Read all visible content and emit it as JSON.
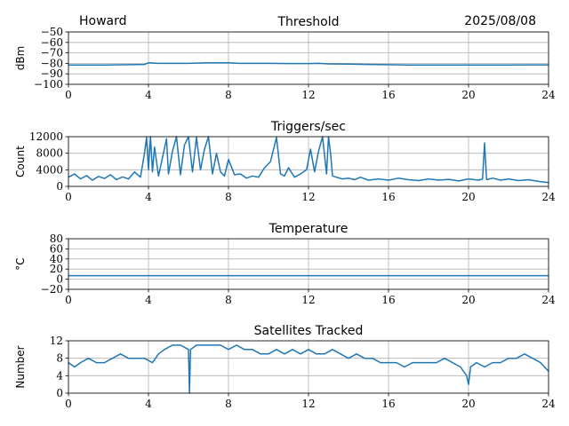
{
  "header": {
    "station": "Howard",
    "date": "2025/08/08"
  },
  "chart_data": [
    {
      "type": "line",
      "title": "Threshold",
      "ylabel": "dBm",
      "xlabel": "",
      "xlim": [
        0,
        24
      ],
      "ylim": [
        -100,
        -50
      ],
      "xticks": [
        "0",
        "4",
        "8",
        "12",
        "16",
        "20",
        "24"
      ],
      "yticks": [
        "−50",
        "−60",
        "−70",
        "−80",
        "−90",
        "−100"
      ],
      "ytick_values": [
        -50,
        -60,
        -70,
        -80,
        -90,
        -100
      ],
      "grid": true,
      "color": "#1f77b4",
      "series": [
        {
          "x": [
            0,
            1,
            2,
            3,
            3.8,
            4.0,
            4.5,
            5,
            6,
            7,
            8,
            8.5,
            9,
            10,
            11,
            12,
            12.5,
            13,
            14,
            15,
            16,
            17,
            18,
            19,
            20,
            21,
            22,
            23,
            24
          ],
          "values": [
            -81.5,
            -81.5,
            -81.5,
            -81.3,
            -81,
            -79.5,
            -80,
            -80,
            -80,
            -79.5,
            -79.5,
            -80,
            -80,
            -80,
            -80.2,
            -80.2,
            -80,
            -80.5,
            -80.8,
            -81,
            -81.3,
            -81.5,
            -81.6,
            -81.6,
            -81.5,
            -81.5,
            -81.5,
            -81.4,
            -81.4
          ]
        }
      ]
    },
    {
      "type": "line",
      "title": "Triggers/sec",
      "ylabel": "Count",
      "xlabel": "",
      "xlim": [
        0,
        24
      ],
      "ylim": [
        0,
        12000
      ],
      "xticks": [
        "0",
        "4",
        "8",
        "12",
        "16",
        "20",
        "24"
      ],
      "yticks": [
        "0",
        "4000",
        "8000",
        "12000"
      ],
      "ytick_values": [
        0,
        4000,
        8000,
        12000
      ],
      "grid": true,
      "color": "#1f77b4",
      "series": [
        {
          "x": [
            0,
            0.3,
            0.6,
            0.9,
            1.2,
            1.5,
            1.8,
            2.1,
            2.4,
            2.7,
            3.0,
            3.3,
            3.6,
            3.8,
            3.9,
            4.0,
            4.1,
            4.2,
            4.3,
            4.5,
            4.7,
            4.9,
            5.0,
            5.2,
            5.4,
            5.6,
            5.8,
            6.0,
            6.2,
            6.4,
            6.6,
            6.8,
            7.0,
            7.2,
            7.4,
            7.6,
            7.8,
            8.0,
            8.3,
            8.6,
            8.9,
            9.2,
            9.5,
            9.8,
            10.1,
            10.4,
            10.6,
            10.8,
            11.0,
            11.3,
            11.6,
            11.9,
            12.1,
            12.3,
            12.5,
            12.7,
            12.9,
            13.0,
            13.1,
            13.2,
            13.4,
            13.7,
            14.0,
            14.3,
            14.6,
            15.0,
            15.5,
            16.0,
            16.5,
            17.0,
            17.5,
            18.0,
            18.5,
            19.0,
            19.5,
            20.0,
            20.5,
            20.7,
            20.8,
            20.9,
            21.2,
            21.6,
            22.0,
            22.5,
            23.0,
            23.5,
            24.0
          ],
          "values": [
            2200,
            3000,
            1800,
            2600,
            1500,
            2400,
            1900,
            2800,
            1600,
            2300,
            1800,
            3500,
            2200,
            8000,
            11800,
            4000,
            12000,
            3500,
            9500,
            2500,
            7000,
            11500,
            3000,
            8500,
            12000,
            2800,
            10000,
            12000,
            3500,
            11800,
            4000,
            9000,
            12000,
            3000,
            8000,
            3500,
            2500,
            6500,
            2800,
            3000,
            2000,
            2500,
            2200,
            4500,
            6000,
            11800,
            3000,
            2500,
            4500,
            2200,
            3000,
            4000,
            9000,
            3500,
            8500,
            12000,
            3000,
            12000,
            8000,
            2500,
            2200,
            1800,
            2000,
            1600,
            2200,
            1500,
            1800,
            1500,
            2000,
            1600,
            1400,
            1800,
            1500,
            1700,
            1300,
            1800,
            1500,
            1800,
            10500,
            1600,
            2000,
            1500,
            1800,
            1400,
            1600,
            1200,
            900
          ]
        }
      ]
    },
    {
      "type": "line",
      "title": "Temperature",
      "ylabel": "°C",
      "xlabel": "",
      "xlim": [
        0,
        24
      ],
      "ylim": [
        -20,
        80
      ],
      "xticks": [
        "0",
        "4",
        "8",
        "12",
        "16",
        "20",
        "24"
      ],
      "yticks": [
        "−20",
        "0",
        "20",
        "40",
        "60",
        "80"
      ],
      "ytick_values": [
        -20,
        0,
        20,
        40,
        60,
        80
      ],
      "grid": true,
      "color": "#1f77b4",
      "series": [
        {
          "x": [
            0,
            24
          ],
          "values": [
            7,
            7
          ]
        }
      ]
    },
    {
      "type": "line",
      "title": "Satellites Tracked",
      "ylabel": "Number",
      "xlabel": "",
      "xlim": [
        0,
        24
      ],
      "ylim": [
        0,
        12
      ],
      "xticks": [
        "0",
        "4",
        "8",
        "12",
        "16",
        "20",
        "24"
      ],
      "yticks": [
        "0",
        "4",
        "8",
        "12"
      ],
      "ytick_values": [
        0,
        4,
        8,
        12
      ],
      "grid": true,
      "color": "#1f77b4",
      "series": [
        {
          "x": [
            0,
            0.3,
            0.6,
            1.0,
            1.4,
            1.8,
            2.2,
            2.6,
            3.0,
            3.4,
            3.8,
            4.2,
            4.5,
            4.8,
            5.2,
            5.6,
            6.0,
            6.05,
            6.1,
            6.4,
            6.8,
            7.2,
            7.6,
            8.0,
            8.4,
            8.8,
            9.2,
            9.6,
            10.0,
            10.4,
            10.8,
            11.2,
            11.6,
            12.0,
            12.4,
            12.8,
            13.2,
            13.6,
            14.0,
            14.4,
            14.8,
            15.2,
            15.6,
            16.0,
            16.4,
            16.8,
            17.2,
            17.6,
            18.0,
            18.4,
            18.8,
            19.2,
            19.6,
            19.9,
            20.0,
            20.1,
            20.4,
            20.8,
            21.2,
            21.6,
            22.0,
            22.4,
            22.8,
            23.2,
            23.6,
            24.0
          ],
          "values": [
            7,
            6,
            7,
            8,
            7,
            7,
            8,
            9,
            8,
            8,
            8,
            7,
            9,
            10,
            11,
            11,
            10,
            0,
            10,
            11,
            11,
            11,
            11,
            10,
            11,
            10,
            10,
            9,
            9,
            10,
            9,
            10,
            9,
            10,
            9,
            9,
            10,
            9,
            8,
            9,
            8,
            8,
            7,
            7,
            7,
            6,
            7,
            7,
            7,
            7,
            8,
            7,
            6,
            4,
            2,
            6,
            7,
            6,
            7,
            7,
            8,
            8,
            9,
            8,
            7,
            5
          ]
        }
      ]
    }
  ]
}
